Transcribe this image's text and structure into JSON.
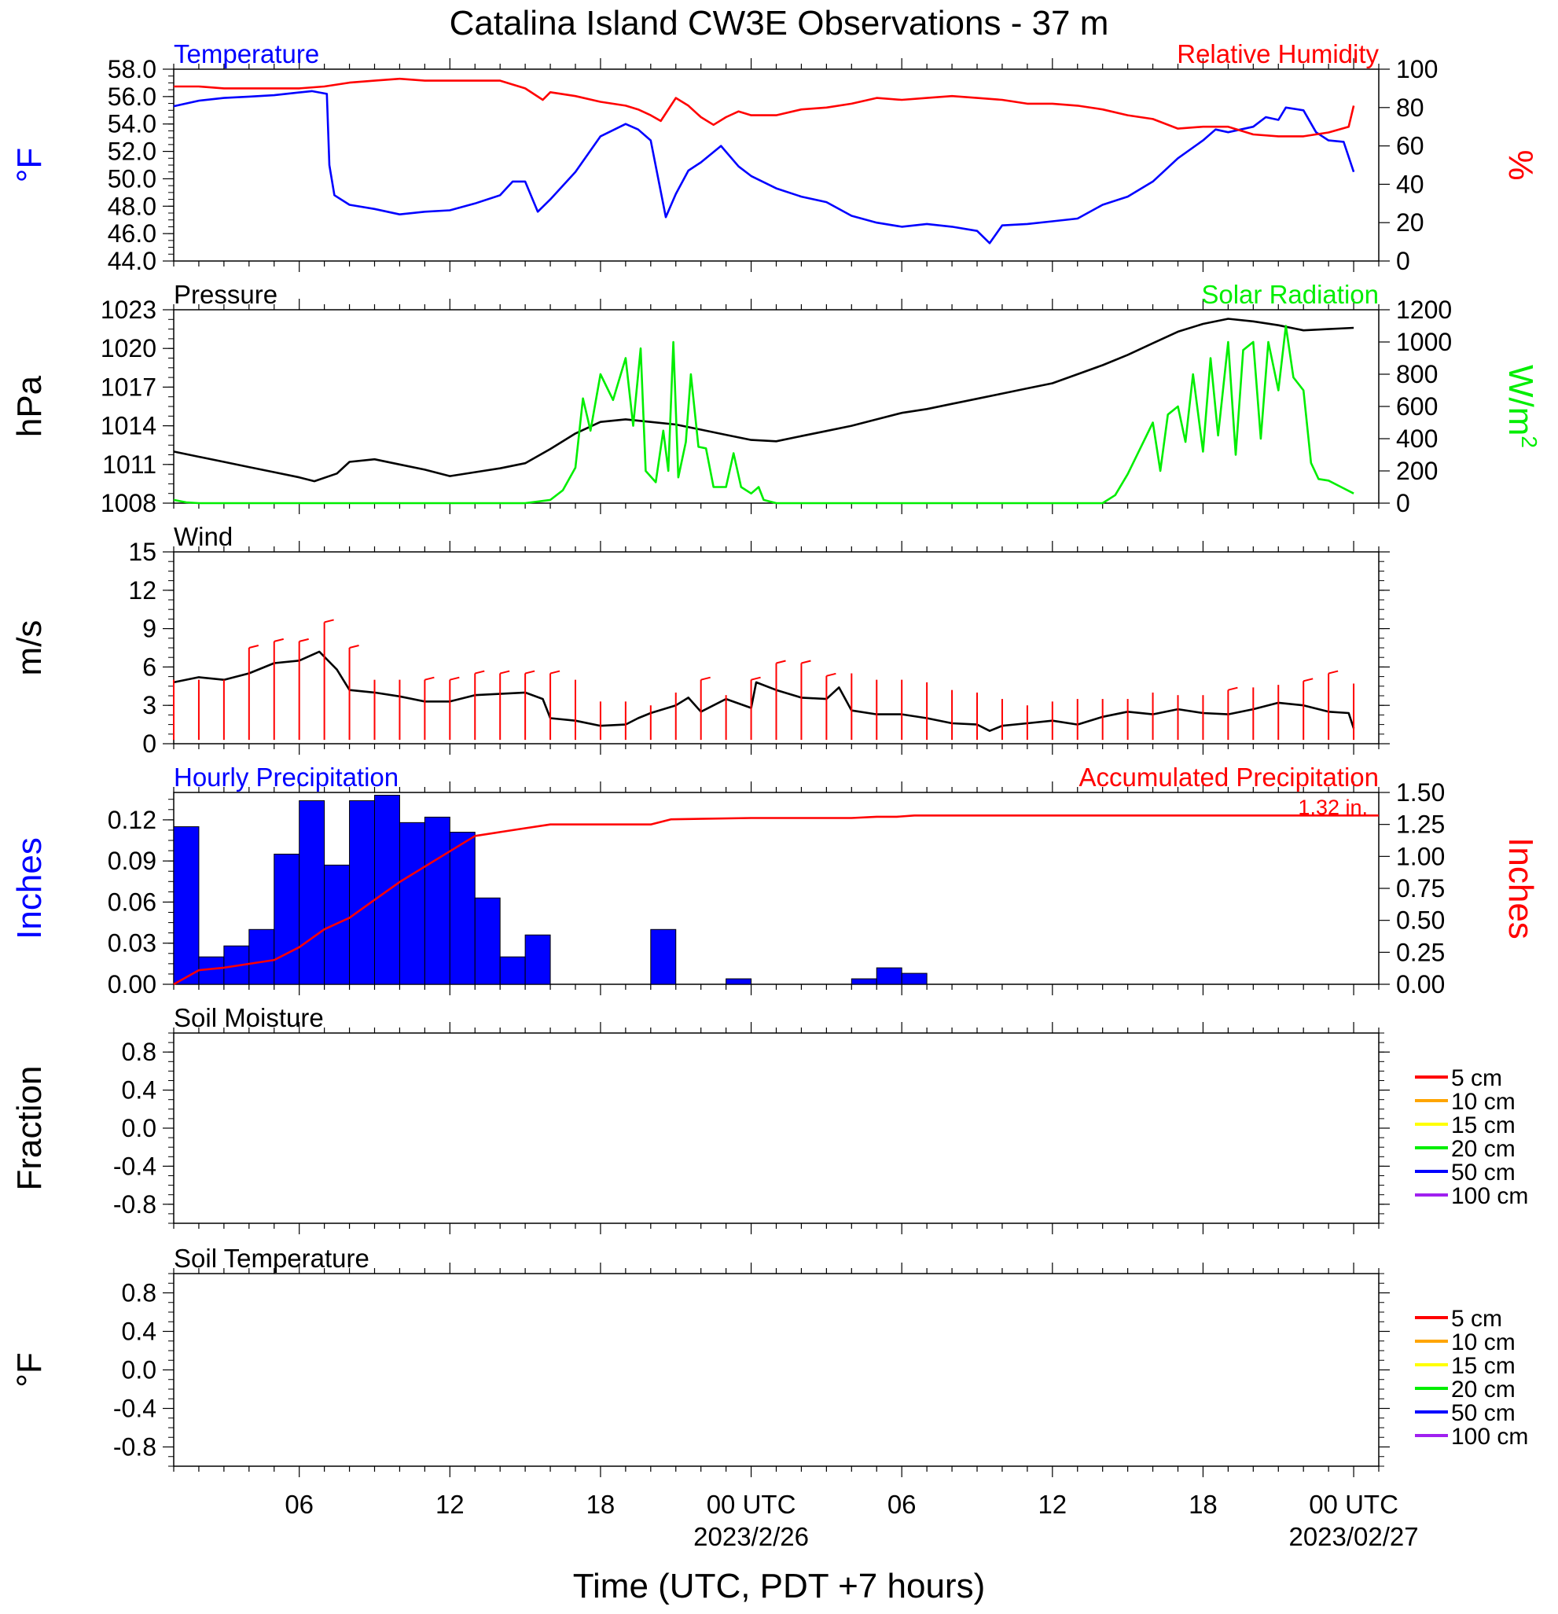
{
  "title": "Catalina Island CW3E Observations - 37 m",
  "x_axis": {
    "label": "Time (UTC, PDT +7 hours)",
    "ticks": [
      {
        "hour": 6,
        "label": "06"
      },
      {
        "hour": 12,
        "label": "12"
      },
      {
        "hour": 18,
        "label": "18"
      },
      {
        "hour": 24,
        "label": "00 UTC",
        "sub": "2023/2/26"
      },
      {
        "hour": 30,
        "label": "06"
      },
      {
        "hour": 36,
        "label": "12"
      },
      {
        "hour": 42,
        "label": "18"
      },
      {
        "hour": 48,
        "label": "00 UTC",
        "sub": "2023/02/27"
      }
    ],
    "range_hours": [
      1,
      49
    ]
  },
  "colors": {
    "blue": "#0000ff",
    "red": "#ff0000",
    "green": "#00ee00",
    "black": "#000000"
  },
  "chart_data": [
    {
      "type": "line",
      "title_left": "Temperature",
      "title_right": "Relative Humidity",
      "ylabel_left": "°F",
      "ylabel_right": "%",
      "ylim_left": [
        44,
        58
      ],
      "yticks_left": [
        "44.0",
        "46.0",
        "48.0",
        "50.0",
        "52.0",
        "54.0",
        "56.0",
        "58.0"
      ],
      "ylim_right": [
        0,
        100
      ],
      "yticks_right": [
        "0",
        "20",
        "40",
        "60",
        "80",
        "100"
      ],
      "series": [
        {
          "name": "Temperature",
          "axis": "left",
          "color": "#0000ff",
          "x": [
            1,
            2,
            3,
            4,
            5,
            6,
            6.5,
            7.1,
            7.2,
            7.4,
            8,
            9,
            10,
            11,
            12,
            13,
            14,
            14.5,
            15,
            15.5,
            16,
            17,
            18,
            19,
            19.5,
            20,
            20.6,
            21,
            21.5,
            22,
            22.8,
            23.5,
            24,
            25,
            26,
            27,
            28,
            29,
            30,
            31,
            32,
            33,
            33.5,
            34,
            35,
            36,
            37,
            38,
            39,
            40,
            41,
            42,
            42.5,
            43,
            44,
            44.5,
            45,
            45.3,
            46,
            46.5,
            47,
            47.6,
            48
          ],
          "y": [
            55.3,
            55.7,
            55.9,
            56.0,
            56.1,
            56.3,
            56.4,
            56.2,
            51,
            48.8,
            48.1,
            47.8,
            47.4,
            47.6,
            47.7,
            48.2,
            48.8,
            49.8,
            49.8,
            47.6,
            48.5,
            50.5,
            53.1,
            54.0,
            53.6,
            52.8,
            47.2,
            48.9,
            50.6,
            51.2,
            52.4,
            50.9,
            50.2,
            49.3,
            48.7,
            48.3,
            47.3,
            46.8,
            46.5,
            46.7,
            46.5,
            46.2,
            45.3,
            46.6,
            46.7,
            46.9,
            47.1,
            48.1,
            48.7,
            49.8,
            51.5,
            52.8,
            53.6,
            53.4,
            53.8,
            54.5,
            54.3,
            55.2,
            55.0,
            53.4,
            52.8,
            52.7,
            50.5
          ]
        },
        {
          "name": "Relative Humidity",
          "axis": "right",
          "color": "#ff0000",
          "x": [
            1,
            2,
            3,
            4,
            5,
            6,
            7,
            8,
            9,
            10,
            11,
            12,
            13,
            14,
            15,
            15.7,
            16,
            17,
            18,
            19,
            19.5,
            20,
            20.4,
            21,
            21.5,
            22,
            22.5,
            23,
            23.5,
            24,
            25,
            26,
            27,
            28,
            29,
            30,
            31,
            32,
            33,
            34,
            35,
            36,
            37,
            38,
            39,
            40,
            41,
            42,
            43,
            44,
            45,
            46,
            47,
            47.8,
            48
          ],
          "y": [
            91,
            91,
            90,
            90,
            90,
            90,
            91,
            93,
            94,
            95,
            94,
            94,
            94,
            94,
            90,
            84,
            88,
            86,
            83,
            81,
            79,
            76,
            73,
            85,
            81,
            75,
            71,
            75,
            78,
            76,
            76,
            79,
            80,
            82,
            85,
            84,
            85,
            86,
            85,
            84,
            82,
            82,
            81,
            79,
            76,
            74,
            69,
            70,
            70,
            66,
            65,
            65,
            67,
            70,
            81
          ]
        }
      ]
    },
    {
      "type": "line",
      "title_left": "Pressure",
      "title_right": "Solar Radiation",
      "ylabel_left": "hPa",
      "ylabel_right": "W/m",
      "ylabel_right_sup": "2",
      "ylim_left": [
        1008,
        1023
      ],
      "yticks_left": [
        "1008",
        "1011",
        "1014",
        "1017",
        "1020",
        "1023"
      ],
      "ylim_right": [
        0,
        1200
      ],
      "yticks_right": [
        "0",
        "200",
        "400",
        "600",
        "800",
        "1000",
        "1200"
      ],
      "series": [
        {
          "name": "Pressure",
          "axis": "left",
          "color": "#000000",
          "x": [
            1,
            2,
            3,
            4,
            5,
            6,
            6.6,
            7.5,
            8,
            9,
            10,
            11,
            12,
            13,
            14,
            15,
            16,
            17,
            18,
            19,
            20,
            21,
            22,
            23,
            24,
            25,
            26,
            27,
            28,
            29,
            30,
            31,
            32,
            33,
            34,
            35,
            36,
            37,
            38,
            39,
            40,
            41,
            42,
            43,
            44,
            45,
            46,
            47,
            48
          ],
          "y": [
            1012.0,
            1011.6,
            1011.2,
            1010.8,
            1010.4,
            1010.0,
            1009.7,
            1010.3,
            1011.2,
            1011.4,
            1011.0,
            1010.6,
            1010.1,
            1010.4,
            1010.7,
            1011.1,
            1012.2,
            1013.4,
            1014.3,
            1014.5,
            1014.3,
            1014.1,
            1013.7,
            1013.3,
            1012.9,
            1012.8,
            1013.2,
            1013.6,
            1014.0,
            1014.5,
            1015.0,
            1015.3,
            1015.7,
            1016.1,
            1016.5,
            1016.9,
            1017.3,
            1018.0,
            1018.7,
            1019.5,
            1020.4,
            1021.3,
            1021.9,
            1022.3,
            1022.1,
            1021.8,
            1021.4,
            1021.5,
            1021.6
          ]
        },
        {
          "name": "Solar Radiation",
          "axis": "right",
          "color": "#00ee00",
          "x": [
            1,
            1.5,
            2,
            14,
            15,
            16,
            16.5,
            17,
            17.3,
            17.6,
            18,
            18.5,
            19,
            19.3,
            19.6,
            19.8,
            20.2,
            20.5,
            20.7,
            20.9,
            21.1,
            21.4,
            21.6,
            21.9,
            22.2,
            22.5,
            23,
            23.3,
            23.6,
            24,
            24.3,
            24.5,
            25,
            25.3,
            26,
            38,
            38.5,
            39,
            39.5,
            40,
            40.3,
            40.6,
            41,
            41.3,
            41.6,
            42,
            42.3,
            42.6,
            43,
            43.3,
            43.6,
            44,
            44.3,
            44.6,
            45,
            45.3,
            45.6,
            46,
            46.3,
            46.6,
            47,
            47.5,
            48
          ],
          "y": [
            20,
            5,
            0,
            0,
            0,
            20,
            80,
            220,
            650,
            450,
            800,
            640,
            900,
            480,
            960,
            200,
            130,
            450,
            200,
            1000,
            160,
            380,
            800,
            350,
            340,
            100,
            100,
            310,
            100,
            60,
            100,
            20,
            0,
            0,
            0,
            0,
            50,
            180,
            340,
            500,
            200,
            550,
            600,
            380,
            800,
            320,
            900,
            420,
            1000,
            300,
            950,
            1000,
            400,
            1000,
            700,
            1100,
            780,
            700,
            250,
            150,
            140,
            100,
            60
          ]
        }
      ]
    },
    {
      "type": "line",
      "title_left": "Wind",
      "ylabel_left": "m/s",
      "ylim_left": [
        0,
        15
      ],
      "yticks_left": [
        "0",
        "3",
        "6",
        "9",
        "12",
        "15"
      ],
      "series": [
        {
          "name": "Wind",
          "axis": "left",
          "color": "#000000",
          "x": [
            1,
            2,
            3,
            4,
            5,
            6,
            6.8,
            7.5,
            8,
            9,
            10,
            11,
            12,
            13,
            14,
            15,
            15.7,
            16,
            17,
            18,
            19,
            19.5,
            20,
            20.5,
            21,
            21.5,
            22,
            23,
            24,
            24.2,
            25,
            26,
            27,
            27.5,
            28,
            29,
            30,
            31,
            32,
            33,
            33.5,
            34,
            35,
            36,
            37,
            38,
            39,
            40,
            41,
            42,
            43,
            44,
            45,
            46,
            47,
            47.8,
            48
          ],
          "y": [
            4.8,
            5.2,
            5.0,
            5.5,
            6.3,
            6.5,
            7.2,
            5.8,
            4.2,
            4.0,
            3.7,
            3.3,
            3.3,
            3.8,
            3.9,
            4.0,
            3.5,
            2.0,
            1.8,
            1.4,
            1.5,
            2.0,
            2.4,
            2.7,
            3.0,
            3.6,
            2.5,
            3.5,
            2.8,
            4.8,
            4.2,
            3.6,
            3.5,
            4.4,
            2.6,
            2.3,
            2.3,
            2.0,
            1.6,
            1.5,
            1.0,
            1.4,
            1.6,
            1.8,
            1.5,
            2.1,
            2.5,
            2.3,
            2.7,
            2.4,
            2.3,
            2.7,
            3.2,
            3.0,
            2.5,
            2.4,
            1.2
          ]
        }
      ],
      "barb_hours": [
        1,
        2,
        3,
        4,
        5,
        6,
        7,
        8,
        9,
        10,
        11,
        12,
        13,
        14,
        15,
        16,
        17,
        18,
        19,
        20,
        21,
        22,
        23,
        24,
        25,
        26,
        27,
        28,
        29,
        30,
        31,
        32,
        33,
        34,
        35,
        36,
        37,
        38,
        39,
        40,
        41,
        42,
        43,
        44,
        45,
        46,
        47,
        48
      ],
      "barb_speed": [
        5,
        5,
        5,
        7.5,
        8,
        8,
        9.5,
        7.5,
        5,
        5,
        5,
        5,
        5.5,
        5.5,
        5.5,
        5.5,
        5,
        3.3,
        3.3,
        3,
        4,
        5,
        3.8,
        5,
        6.3,
        6.3,
        5.3,
        5.5,
        5,
        5,
        4.8,
        4.2,
        4,
        3.5,
        3,
        3.3,
        3.5,
        3.5,
        3.5,
        4,
        3.8,
        3.8,
        4.2,
        4.4,
        4.6,
        4.9,
        5.5,
        4.7
      ],
      "barb_flags": [
        0,
        0,
        0,
        1,
        1,
        1,
        1,
        1,
        0,
        0,
        1,
        1,
        1,
        1,
        1,
        1,
        0,
        0,
        0,
        0,
        0,
        1,
        0,
        1,
        1,
        1,
        1,
        0,
        0,
        0,
        0,
        0,
        0,
        0,
        0,
        0,
        0,
        0,
        0,
        0,
        0,
        0,
        1,
        0,
        0,
        1,
        1,
        0
      ]
    },
    {
      "type": "bar",
      "title_left": "Hourly Precipitation",
      "title_right": "Accumulated Precipitation",
      "annotation": "1.32 in.",
      "ylabel_left": "Inches",
      "ylabel_right": "Inches",
      "ylim_left": [
        0,
        0.14
      ],
      "yticks_left": [
        "0.00",
        "0.03",
        "0.06",
        "0.09",
        "0.12"
      ],
      "yticks_left_values": [
        0,
        0.03,
        0.06,
        0.09,
        0.12
      ],
      "ylim_right": [
        0,
        1.5
      ],
      "yticks_right": [
        "0.00",
        "0.25",
        "0.50",
        "0.75",
        "1.00",
        "1.25",
        "1.50"
      ],
      "hourly": {
        "x": [
          1,
          2,
          3,
          4,
          5,
          6,
          7,
          8,
          9,
          10,
          11,
          12,
          13,
          14,
          15,
          16,
          17,
          18,
          19,
          20,
          21,
          22,
          23,
          24,
          25,
          26,
          27,
          28,
          29,
          30,
          31,
          32
        ],
        "values": [
          0.115,
          0.02,
          0.028,
          0.04,
          0.095,
          0.134,
          0.087,
          0.134,
          0.138,
          0.118,
          0.122,
          0.111,
          0.063,
          0.02,
          0.036,
          0,
          0,
          0,
          0,
          0.04,
          0,
          0,
          0.004,
          0,
          0,
          0,
          0,
          0.004,
          0.012,
          0.008,
          0,
          0
        ]
      },
      "accumulated": {
        "x": [
          1,
          2,
          3,
          4,
          5,
          6,
          7,
          8,
          9,
          10,
          11,
          12,
          13,
          14,
          15,
          16,
          20,
          20.8,
          24,
          28,
          29,
          29.8,
          30.5,
          49
        ],
        "y": [
          0,
          0.11,
          0.13,
          0.16,
          0.19,
          0.29,
          0.43,
          0.52,
          0.66,
          0.8,
          0.92,
          1.04,
          1.16,
          1.19,
          1.22,
          1.25,
          1.25,
          1.29,
          1.3,
          1.3,
          1.31,
          1.31,
          1.32,
          1.32
        ]
      }
    },
    {
      "type": "line",
      "title_left": "Soil Moisture",
      "ylabel_left": "Fraction",
      "ylim_left": [
        -1,
        1
      ],
      "yticks_left": [
        "-0.8",
        "-0.4",
        "0.0",
        "0.4",
        "0.8"
      ],
      "yticks_left_values": [
        -0.8,
        -0.4,
        0,
        0.4,
        0.8
      ],
      "legend": [
        {
          "name": "5 cm",
          "color": "#ff0000"
        },
        {
          "name": "10 cm",
          "color": "#ffa500"
        },
        {
          "name": "15 cm",
          "color": "#ffff00"
        },
        {
          "name": "20 cm",
          "color": "#00ee00"
        },
        {
          "name": "50 cm",
          "color": "#0000ff"
        },
        {
          "name": "100 cm",
          "color": "#a020f0"
        }
      ],
      "series": []
    },
    {
      "type": "line",
      "title_left": "Soil Temperature",
      "ylabel_left": "°F",
      "ylim_left": [
        -1,
        1
      ],
      "yticks_left": [
        "-0.8",
        "-0.4",
        "0.0",
        "0.4",
        "0.8"
      ],
      "yticks_left_values": [
        -0.8,
        -0.4,
        0,
        0.4,
        0.8
      ],
      "legend": [
        {
          "name": "5 cm",
          "color": "#ff0000"
        },
        {
          "name": "10 cm",
          "color": "#ffa500"
        },
        {
          "name": "15 cm",
          "color": "#ffff00"
        },
        {
          "name": "20 cm",
          "color": "#00ee00"
        },
        {
          "name": "50 cm",
          "color": "#0000ff"
        },
        {
          "name": "100 cm",
          "color": "#a020f0"
        }
      ],
      "series": []
    }
  ]
}
